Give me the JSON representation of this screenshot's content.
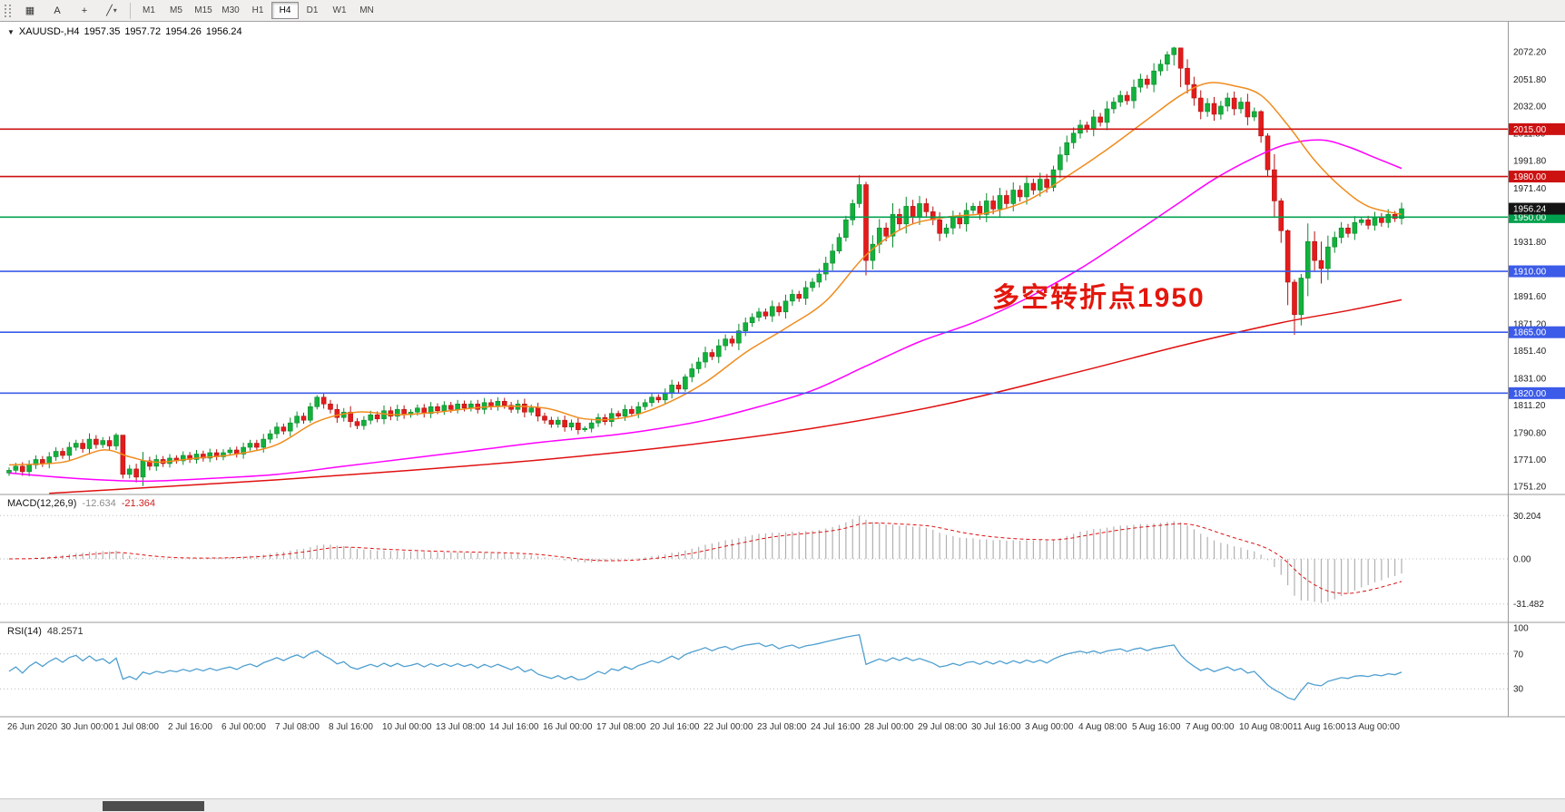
{
  "toolbar": {
    "tools": [
      {
        "name": "chart-grid-icon",
        "glyph": "▦"
      },
      {
        "name": "cursor-icon",
        "glyph": "A"
      },
      {
        "name": "crosshair-icon",
        "glyph": "+"
      },
      {
        "name": "line-studies-icon",
        "glyph": "╱",
        "caret": "▾"
      }
    ],
    "timeframes": [
      "M1",
      "M5",
      "M15",
      "M30",
      "H1",
      "H4",
      "D1",
      "W1",
      "MN"
    ],
    "active": "H4"
  },
  "chart_data": {
    "type": "candlestick",
    "title": {
      "arrow": "▼",
      "symbol_period": "XAUUSD-,H4",
      "open": "1957.35",
      "high": "1957.72",
      "low": "1954.26",
      "close": "1956.24"
    },
    "annotation": {
      "text": "多空转折点1950",
      "color": "#e3170d"
    },
    "colors": {
      "up": "#12b13c",
      "up_stroke": "#0a8a2c",
      "down": "#e51b1b",
      "down_stroke": "#b21010"
    },
    "candles": {
      "first_open": 1761,
      "closes": [
        1763,
        1766,
        1762,
        1767,
        1771,
        1768,
        1773,
        1777,
        1774,
        1780,
        1783,
        1779,
        1786,
        1782,
        1785,
        1781,
        1789,
        1760,
        1764,
        1758,
        1770,
        1766,
        1771,
        1768,
        1772,
        1770,
        1774,
        1771,
        1775,
        1772,
        1776,
        1773,
        1776,
        1778,
        1775,
        1780,
        1783,
        1780,
        1786,
        1790,
        1795,
        1792,
        1798,
        1803,
        1800,
        1810,
        1817,
        1812,
        1808,
        1802,
        1806,
        1799,
        1796,
        1800,
        1804,
        1801,
        1807,
        1803,
        1808,
        1804,
        1806,
        1809,
        1805,
        1810,
        1807,
        1811,
        1808,
        1812,
        1809,
        1812,
        1808,
        1813,
        1810,
        1814,
        1811,
        1808,
        1812,
        1806,
        1809,
        1803,
        1800,
        1797,
        1800,
        1795,
        1798,
        1793,
        1794,
        1798,
        1802,
        1799,
        1805,
        1803,
        1808,
        1805,
        1810,
        1813,
        1817,
        1815,
        1820,
        1826,
        1823,
        1832,
        1838,
        1843,
        1850,
        1847,
        1855,
        1860,
        1857,
        1866,
        1872,
        1876,
        1880,
        1877,
        1884,
        1880,
        1888,
        1893,
        1890,
        1898,
        1902,
        1908,
        1916,
        1925,
        1935,
        1948,
        1960,
        1974,
        1918,
        1930,
        1942,
        1936,
        1952,
        1945,
        1958,
        1950,
        1960,
        1954,
        1948,
        1938,
        1942,
        1950,
        1945,
        1955,
        1958,
        1952,
        1962,
        1956,
        1966,
        1960,
        1970,
        1965,
        1975,
        1970,
        1978,
        1972,
        1985,
        1996,
        2005,
        2012,
        2018,
        2015,
        2024,
        2020,
        2030,
        2035,
        2040,
        2036,
        2046,
        2052,
        2048,
        2058,
        2063,
        2070,
        2075,
        2060,
        2048,
        2038,
        2028,
        2034,
        2026,
        2032,
        2038,
        2030,
        2035,
        2024,
        2028,
        2010,
        1985,
        1962,
        1940,
        1902,
        1878,
        1905,
        1932,
        1918,
        1912,
        1928,
        1935,
        1942,
        1938,
        1946,
        1948,
        1944,
        1950,
        1946,
        1952,
        1949,
        1956.24
      ],
      "wick_overrides": {
        "16": [
          1790.5,
          1778
        ],
        "17": [
          1788,
          1757
        ],
        "45": [
          1813,
          1798
        ],
        "46": [
          1818.5,
          1808
        ],
        "101": [
          1834,
          1821
        ],
        "124": [
          1938,
          1923
        ],
        "125": [
          1951,
          1932
        ],
        "126": [
          1963,
          1944
        ],
        "127": [
          1981,
          1957
        ],
        "128": [
          1976,
          1907
        ],
        "156": [
          1988,
          1969
        ],
        "173": [
          2072.5,
          2058
        ],
        "174": [
          2075.8,
          2062
        ],
        "175": [
          2074,
          2046
        ],
        "187": [
          2029,
          2005
        ],
        "188": [
          2012,
          1980
        ],
        "190": [
          1964,
          1931
        ],
        "191": [
          1941,
          1885
        ],
        "192": [
          1904,
          1863
        ],
        "193": [
          1908,
          1870
        ],
        "196": [
          1932,
          1901
        ]
      }
    },
    "ma_lines": [
      {
        "name": "ma-slow-red-line",
        "color": "#e01010",
        "width": 1.5,
        "points": [
          [
            6,
            1746
          ],
          [
            20,
            1750
          ],
          [
            40,
            1756
          ],
          [
            60,
            1763
          ],
          [
            80,
            1771
          ],
          [
            100,
            1781
          ],
          [
            120,
            1794
          ],
          [
            140,
            1812
          ],
          [
            160,
            1836
          ],
          [
            175,
            1855
          ],
          [
            190,
            1872
          ],
          [
            200,
            1881
          ],
          [
            208,
            1889
          ]
        ]
      },
      {
        "name": "ma-medium-magenta-line",
        "color": "#ff00ff",
        "width": 1.5,
        "points": [
          [
            0,
            1761
          ],
          [
            10,
            1757
          ],
          [
            20,
            1755
          ],
          [
            30,
            1757
          ],
          [
            40,
            1760
          ],
          [
            50,
            1766
          ],
          [
            60,
            1772
          ],
          [
            70,
            1778
          ],
          [
            80,
            1784
          ],
          [
            90,
            1789
          ],
          [
            96,
            1793
          ],
          [
            104,
            1800
          ],
          [
            112,
            1810
          ],
          [
            120,
            1822
          ],
          [
            128,
            1840
          ],
          [
            136,
            1858
          ],
          [
            144,
            1872
          ],
          [
            152,
            1890
          ],
          [
            160,
            1912
          ],
          [
            168,
            1938
          ],
          [
            174,
            1958
          ],
          [
            180,
            1978
          ],
          [
            186,
            1994
          ],
          [
            191,
            2004
          ],
          [
            196,
            2007
          ],
          [
            200,
            2002
          ],
          [
            204,
            1994
          ],
          [
            208,
            1986
          ]
        ]
      },
      {
        "name": "ma-fast-orange-line",
        "color": "#f08c1e",
        "width": 1.5,
        "points": [
          [
            0,
            1767
          ],
          [
            8,
            1769
          ],
          [
            14,
            1778
          ],
          [
            18,
            1773
          ],
          [
            22,
            1769
          ],
          [
            28,
            1772
          ],
          [
            34,
            1775
          ],
          [
            40,
            1782
          ],
          [
            46,
            1799
          ],
          [
            52,
            1806
          ],
          [
            58,
            1804
          ],
          [
            64,
            1806
          ],
          [
            72,
            1810
          ],
          [
            80,
            1809
          ],
          [
            86,
            1801
          ],
          [
            92,
            1802
          ],
          [
            98,
            1812
          ],
          [
            104,
            1828
          ],
          [
            110,
            1850
          ],
          [
            116,
            1868
          ],
          [
            122,
            1888
          ],
          [
            128,
            1922
          ],
          [
            134,
            1943
          ],
          [
            140,
            1950
          ],
          [
            146,
            1953
          ],
          [
            152,
            1962
          ],
          [
            158,
            1980
          ],
          [
            164,
            2000
          ],
          [
            170,
            2022
          ],
          [
            175,
            2040
          ],
          [
            179,
            2049
          ],
          [
            183,
            2047
          ],
          [
            187,
            2040
          ],
          [
            191,
            2018
          ],
          [
            195,
            1992
          ],
          [
            199,
            1972
          ],
          [
            203,
            1958
          ],
          [
            208,
            1952
          ]
        ]
      }
    ],
    "hlines": [
      {
        "price": 2015,
        "label": "2015.00",
        "color": "#cc1111"
      },
      {
        "price": 1980,
        "label": "1980.00",
        "color": "#cc1111"
      },
      {
        "price": 1950,
        "label": "1950.00",
        "color": "#00a14e"
      },
      {
        "price": 1910,
        "label": "1910.00",
        "color": "#3c5be8"
      },
      {
        "price": 1865,
        "label": "1865.00",
        "color": "#3c5be8"
      },
      {
        "price": 1820,
        "label": "1820.00",
        "color": "#3c5be8"
      }
    ],
    "current_price": {
      "price": 1956.24,
      "label": "1956.24",
      "color": "#141414"
    },
    "price_axis": {
      "ticks": [
        "2072.20",
        "2051.80",
        "2032.00",
        "2011.80",
        "1991.80",
        "1971.40",
        "1951.20",
        "1931.80",
        "1911.40",
        "1891.60",
        "1871.20",
        "1851.40",
        "1831.00",
        "1811.20",
        "1790.80",
        "1771.00",
        "1751.20"
      ]
    },
    "time_axis": [
      "26 Jun 2020",
      "30 Jun 00:00",
      "1 Jul 08:00",
      "2 Jul 16:00",
      "6 Jul 00:00",
      "7 Jul 08:00",
      "8 Jul 16:00",
      "10 Jul 00:00",
      "13 Jul 08:00",
      "14 Jul 16:00",
      "16 Jul 00:00",
      "17 Jul 08:00",
      "20 Jul 16:00",
      "22 Jul 00:00",
      "23 Jul 08:00",
      "24 Jul 16:00",
      "28 Jul 00:00",
      "29 Jul 08:00",
      "30 Jul 16:00",
      "3 Aug 00:00",
      "4 Aug 08:00",
      "5 Aug 16:00",
      "7 Aug 00:00",
      "10 Aug 08:00",
      "11 Aug 16:00",
      "13 Aug 00:00"
    ],
    "macd": {
      "label": "MACD(12,26,9)",
      "main_value": "-12.634",
      "signal_value": "-21.364",
      "axis": [
        "30.204",
        "0.00",
        "-31.482"
      ],
      "hist_color": "#b0b0b0",
      "signal_color": "#dd1111"
    },
    "rsi": {
      "label": "RSI(14)",
      "value": "48.2571",
      "axis": [
        "100",
        "70",
        "30"
      ],
      "line_color": "#4f9fd0",
      "levels": [
        70,
        30
      ]
    }
  }
}
